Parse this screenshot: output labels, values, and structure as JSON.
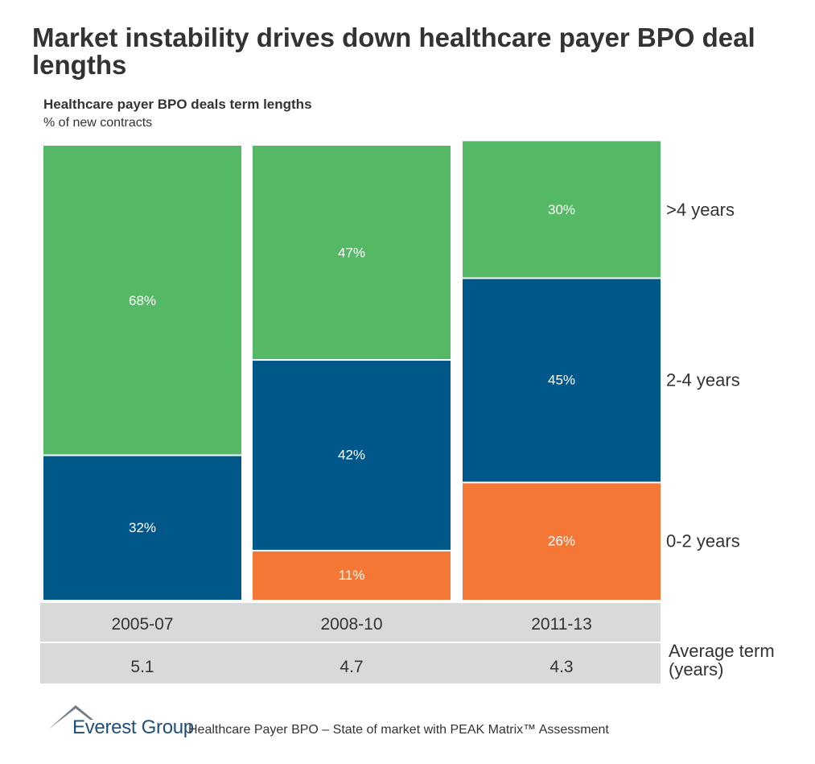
{
  "header": {
    "title": "Market instability drives down healthcare payer BPO deal lengths",
    "subtitle": "Healthcare payer BPO deals term lengths",
    "unit": "% of new contracts"
  },
  "chart_data": {
    "type": "bar",
    "stacked": true,
    "percent_stacked": true,
    "categories": [
      "2005-07",
      "2008-10",
      "2011-13"
    ],
    "series": [
      {
        "name": "0-2 years",
        "values": [
          0,
          11,
          26
        ],
        "color": "#f47735"
      },
      {
        "name": "2-4 years",
        "values": [
          32,
          42,
          45
        ],
        "color": "#00578a"
      },
      {
        "name": ">4 years",
        "values": [
          68,
          47,
          30
        ],
        "color": "#54b865"
      }
    ],
    "value_labels": [
      "32%",
      "68%",
      "11%",
      "42%",
      "47%",
      "26%",
      "45%",
      "30%"
    ],
    "title": "Healthcare payer BPO deals term lengths",
    "ylabel": "% of new contracts",
    "ylim": [
      0,
      100
    ],
    "legend_position": "right",
    "average_term": {
      "label": "Average term (years)",
      "values": [
        "5.1",
        "4.7",
        "4.3"
      ]
    }
  },
  "footer": {
    "logo_text": "Everest Group",
    "text": "Healthcare Payer BPO – State of market with PEAK Matrix™ Assessment"
  },
  "colors": {
    "gray_band": "#d9d9d9",
    "text": "#333333"
  }
}
